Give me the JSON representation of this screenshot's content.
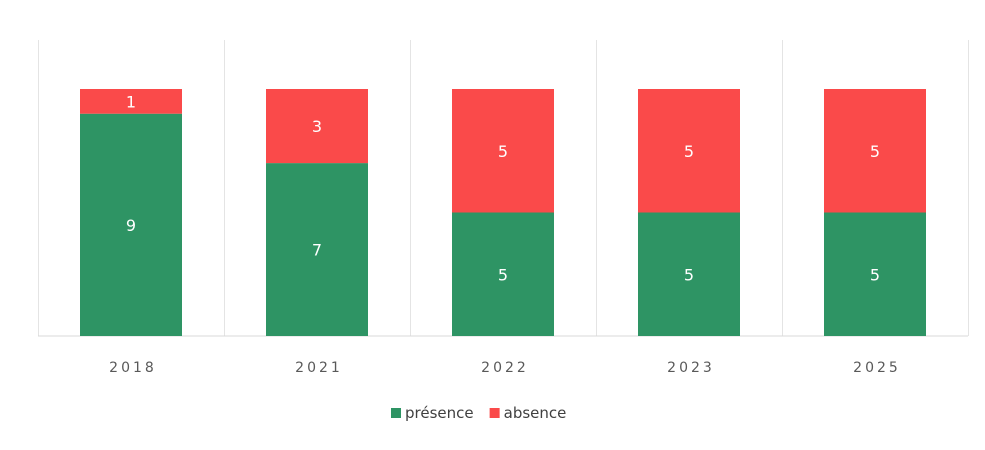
{
  "chart_data": {
    "type": "bar",
    "stacked": true,
    "categories": [
      "2018",
      "2021",
      "2022",
      "2023",
      "2025"
    ],
    "series": [
      {
        "name": "présence",
        "values": [
          9,
          7,
          5,
          5,
          5
        ],
        "color": "#2e9464"
      },
      {
        "name": "absence",
        "values": [
          1,
          3,
          5,
          5,
          5
        ],
        "color": "#fa4a4a"
      }
    ],
    "ylim": [
      0,
      10
    ],
    "grid": false,
    "legend_position": "bottom",
    "data_labels": true
  }
}
